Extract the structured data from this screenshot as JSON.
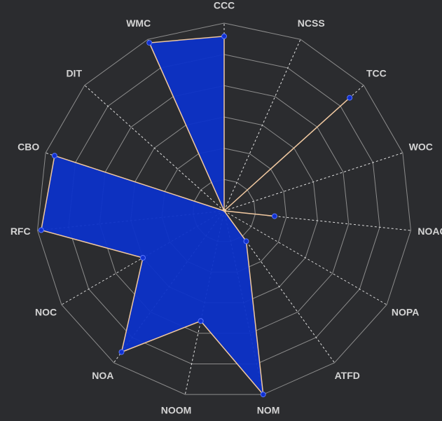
{
  "chart_data": {
    "type": "radar",
    "title": "",
    "rlim": [
      0,
      1
    ],
    "ring_count": 6,
    "axes": [
      "CCC",
      "NCSS",
      "TCC",
      "WOC",
      "NOAC",
      "NOPA",
      "ATFD",
      "NOM",
      "NOOM",
      "NOA",
      "NOC",
      "RFC",
      "CBO",
      "DIT",
      "WMC"
    ],
    "series": [
      {
        "name": "",
        "values": [
          0.93,
          0.0,
          0.9,
          0.0,
          0.27,
          0.0,
          0.2,
          1.0,
          0.6,
          0.93,
          0.5,
          0.98,
          0.95,
          0.0,
          0.98
        ],
        "fill_color": "#0c32c8",
        "line_color": "#f0c8a0",
        "marker_color": "#1030d0"
      }
    ],
    "grid": true,
    "legend": "none"
  },
  "colors": {
    "background": "#2b2c2f",
    "grid_ring": "#8c8c8c",
    "grid_spoke": "#e0e0e0",
    "label": "#d4d4d4"
  }
}
